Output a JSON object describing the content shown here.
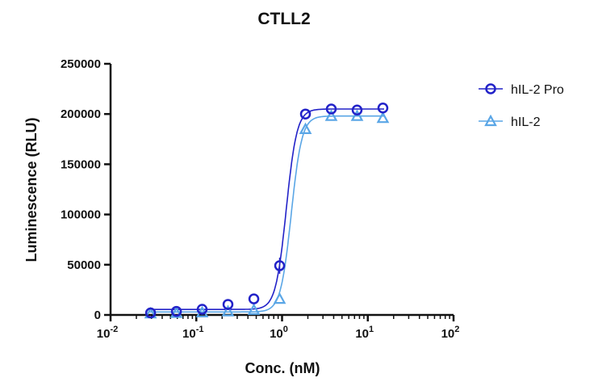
{
  "chart_data": {
    "type": "scatter",
    "title": "CTLL2",
    "xlabel": "Conc. (nM)",
    "ylabel": "Luminescence (RLU)",
    "xscale": "log",
    "xlim": [
      0.01,
      100
    ],
    "ylim": [
      0,
      250000
    ],
    "x_ticks": [
      {
        "base": "10",
        "exp": "-2"
      },
      {
        "base": "10",
        "exp": "-1"
      },
      {
        "base": "10",
        "exp": "0"
      },
      {
        "base": "10",
        "exp": "1"
      },
      {
        "base": "10",
        "exp": "2"
      }
    ],
    "y_ticks": [
      "0",
      "50000",
      "100000",
      "150000",
      "200000",
      "250000"
    ],
    "grid": false,
    "legend_position": "top-right",
    "x": [
      0.0293,
      0.0586,
      0.117,
      0.234,
      0.469,
      0.9375,
      1.875,
      3.75,
      7.5,
      15
    ],
    "series": [
      {
        "name": "hIL-2 Pro",
        "marker": "circle",
        "color": "#2222c8",
        "values": [
          2000,
          3500,
          5600,
          10500,
          16000,
          49000,
          200000,
          205000,
          204000,
          206000
        ]
      },
      {
        "name": "hIL-2",
        "marker": "triangle",
        "color": "#5aa6e6",
        "values": [
          1500,
          2000,
          2500,
          3500,
          5000,
          16000,
          185000,
          198000,
          198000,
          196000
        ]
      }
    ]
  }
}
